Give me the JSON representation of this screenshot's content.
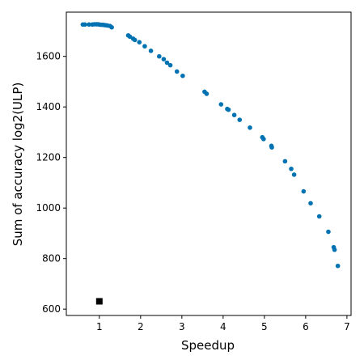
{
  "chart_data": {
    "type": "scatter",
    "title": "",
    "xlabel": "Speedup",
    "ylabel": "Sum of accuracy log2(ULP)",
    "xlim": [
      0.2,
      7.1
    ],
    "ylim": [
      575,
      1775
    ],
    "xticks": [
      1,
      2,
      3,
      4,
      5,
      6,
      7
    ],
    "yticks": [
      600,
      800,
      1000,
      1200,
      1400,
      1600
    ],
    "grid": false,
    "series": [
      {
        "marker": "circle",
        "color": "#0072b2",
        "points": [
          [
            0.6,
            1726
          ],
          [
            0.65,
            1726
          ],
          [
            0.75,
            1726
          ],
          [
            0.83,
            1726
          ],
          [
            0.88,
            1727
          ],
          [
            0.93,
            1727
          ],
          [
            0.97,
            1727
          ],
          [
            1.0,
            1726
          ],
          [
            1.04,
            1725
          ],
          [
            1.08,
            1725
          ],
          [
            1.12,
            1724
          ],
          [
            1.16,
            1723
          ],
          [
            1.2,
            1722
          ],
          [
            1.26,
            1720
          ],
          [
            1.3,
            1715
          ],
          [
            1.7,
            1683
          ],
          [
            1.74,
            1678
          ],
          [
            1.82,
            1670
          ],
          [
            1.86,
            1665
          ],
          [
            1.97,
            1656
          ],
          [
            2.1,
            1640
          ],
          [
            2.25,
            1622
          ],
          [
            2.45,
            1600
          ],
          [
            2.56,
            1589
          ],
          [
            2.64,
            1575
          ],
          [
            2.72,
            1565
          ],
          [
            2.88,
            1540
          ],
          [
            3.02,
            1523
          ],
          [
            3.55,
            1460
          ],
          [
            3.6,
            1452
          ],
          [
            3.95,
            1410
          ],
          [
            4.1,
            1392
          ],
          [
            4.13,
            1389
          ],
          [
            4.27,
            1368
          ],
          [
            4.4,
            1349
          ],
          [
            4.65,
            1318
          ],
          [
            4.95,
            1280
          ],
          [
            4.98,
            1273
          ],
          [
            5.17,
            1246
          ],
          [
            5.18,
            1240
          ],
          [
            5.5,
            1185
          ],
          [
            5.65,
            1155
          ],
          [
            5.72,
            1132
          ],
          [
            5.95,
            1066
          ],
          [
            6.12,
            1019
          ],
          [
            6.33,
            967
          ],
          [
            6.55,
            906
          ],
          [
            6.68,
            845
          ],
          [
            6.7,
            835
          ],
          [
            6.78,
            771
          ]
        ]
      },
      {
        "marker": "square",
        "color": "#000000",
        "points": [
          [
            1.0,
            631
          ]
        ]
      }
    ]
  }
}
